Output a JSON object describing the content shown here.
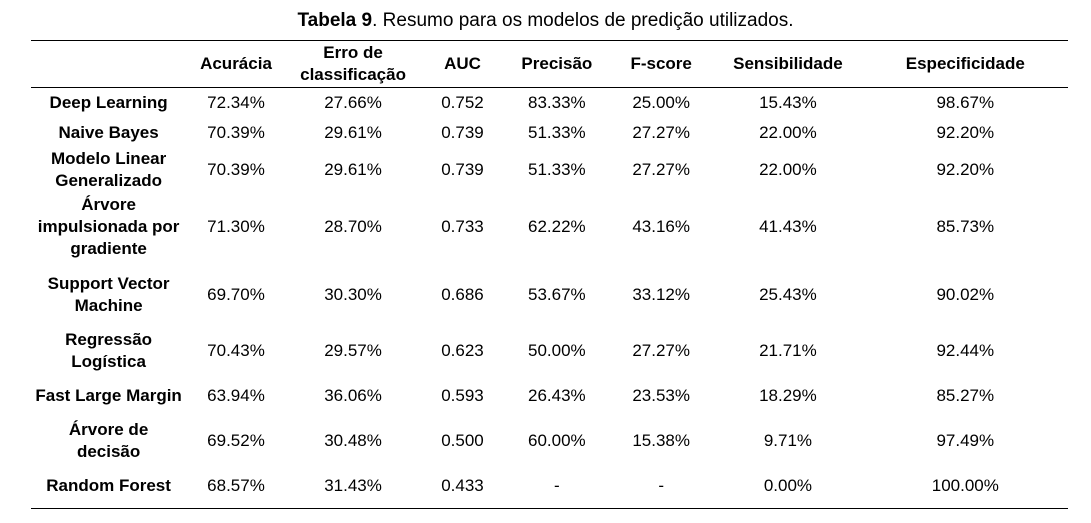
{
  "caption": {
    "label": "Tabela 9",
    "text": ". Resumo para os modelos de predição utilizados."
  },
  "table": {
    "headers": [
      "",
      "Acurácia",
      "Erro de classificação",
      "AUC",
      "Precisão",
      "F-score",
      "Sensibilidade",
      "Especificidade"
    ],
    "rows": [
      {
        "model": "Deep Learning",
        "values": [
          "72.34%",
          "27.66%",
          "0.752",
          "83.33%",
          "25.00%",
          "15.43%",
          "98.67%"
        ]
      },
      {
        "model": "Naive Bayes",
        "values": [
          "70.39%",
          "29.61%",
          "0.739",
          "51.33%",
          "27.27%",
          "22.00%",
          "92.20%"
        ]
      },
      {
        "model": "Modelo Linear Generalizado",
        "values": [
          "70.39%",
          "29.61%",
          "0.739",
          "51.33%",
          "27.27%",
          "22.00%",
          "92.20%"
        ]
      },
      {
        "model": "Árvore impulsionada por gradiente",
        "values": [
          "71.30%",
          "28.70%",
          "0.733",
          "62.22%",
          "43.16%",
          "41.43%",
          "85.73%"
        ]
      },
      {
        "model": "Support Vector Machine",
        "values": [
          "69.70%",
          "30.30%",
          "0.686",
          "53.67%",
          "33.12%",
          "25.43%",
          "90.02%"
        ]
      },
      {
        "model": "Regressão Logística",
        "values": [
          "70.43%",
          "29.57%",
          "0.623",
          "50.00%",
          "27.27%",
          "21.71%",
          "92.44%"
        ]
      },
      {
        "model": "Fast Large Margin",
        "values": [
          "63.94%",
          "36.06%",
          "0.593",
          "26.43%",
          "23.53%",
          "18.29%",
          "85.27%"
        ]
      },
      {
        "model": "Árvore de decisão",
        "values": [
          "69.52%",
          "30.48%",
          "0.500",
          "60.00%",
          "15.38%",
          "9.71%",
          "97.49%"
        ]
      },
      {
        "model": "Random Forest",
        "values": [
          "68.57%",
          "31.43%",
          "0.433",
          "-",
          "-",
          "0.00%",
          "100.00%"
        ]
      }
    ]
  }
}
